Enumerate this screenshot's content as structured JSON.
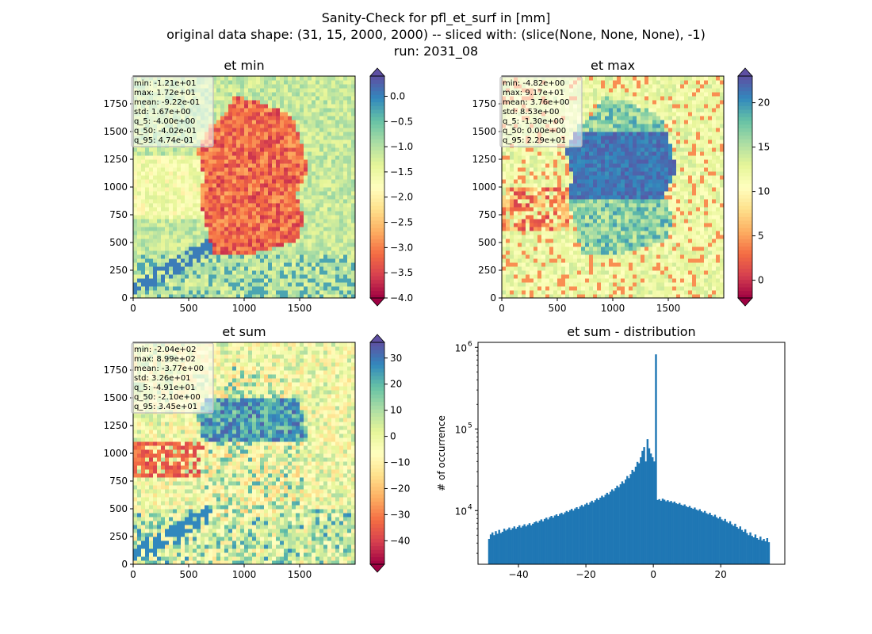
{
  "figure": {
    "title_lines": [
      "Sanity-Check for pfl_et_surf in [mm]",
      "original data shape: (31, 15, 2000, 2000) -- sliced with: (slice(None, None, None), -1)",
      "run: 2031_08"
    ]
  },
  "chart_data": [
    {
      "type": "heatmap",
      "title": "et min",
      "xlim": [
        0,
        2000
      ],
      "ylim": [
        0,
        2000
      ],
      "xticks": [
        0,
        500,
        1000,
        1500
      ],
      "yticks": [
        0,
        250,
        500,
        750,
        1000,
        1250,
        1500,
        1750
      ],
      "colormap": "Spectral",
      "colorbar": {
        "range": [
          -4.0,
          0.4
        ],
        "ticks": [
          "0.0",
          "−0.5",
          "−1.0",
          "−1.5",
          "−2.0",
          "−2.5",
          "−3.0",
          "−3.5",
          "−4.0"
        ],
        "extend": "both"
      },
      "stats": [
        "min: -1.21e+01",
        "max: 1.72e+01",
        "mean: -9.22e-01",
        "std: 1.67e+00",
        "q_5: -4.00e+00",
        "q_50: -4.02e-01",
        "q_95: 4.74e-01"
      ]
    },
    {
      "type": "heatmap",
      "title": "et max",
      "xlim": [
        0,
        2000
      ],
      "ylim": [
        0,
        2000
      ],
      "xticks": [
        0,
        500,
        1000,
        1500
      ],
      "yticks": [
        0,
        250,
        500,
        750,
        1000,
        1250,
        1500,
        1750
      ],
      "colormap": "Spectral",
      "colorbar": {
        "range": [
          -2,
          23
        ],
        "ticks": [
          "20",
          "15",
          "10",
          "5",
          "0"
        ],
        "extend": "both"
      },
      "stats": [
        "min: -4.82e+00",
        "max: 9.17e+01",
        "mean: 3.76e+00",
        "std: 8.53e+00",
        "q_5: -1.30e+00",
        "q_50: 0.00e+00",
        "q_95: 2.29e+01"
      ]
    },
    {
      "type": "heatmap",
      "title": "et sum",
      "xlim": [
        0,
        2000
      ],
      "ylim": [
        0,
        2000
      ],
      "xticks": [
        0,
        500,
        1000,
        1500
      ],
      "yticks": [
        0,
        250,
        500,
        750,
        1000,
        1250,
        1500,
        1750
      ],
      "colormap": "Spectral",
      "colorbar": {
        "range": [
          -49,
          36
        ],
        "ticks": [
          "30",
          "20",
          "10",
          "0",
          "−10",
          "−20",
          "−30",
          "−40"
        ],
        "extend": "both"
      },
      "stats": [
        "min: -2.04e+02",
        "max: 8.99e+02",
        "mean: -3.77e+00",
        "std: 3.26e+01",
        "q_5: -4.91e+01",
        "q_50: -2.10e+00",
        "q_95: 3.45e+01"
      ]
    },
    {
      "type": "bar",
      "title": "et sum - distribution",
      "ylabel": "# of occurrence",
      "xlabel": "",
      "yscale": "log",
      "xlim": [
        -52,
        39
      ],
      "ylim": [
        2200,
        1150000
      ],
      "xticks": [
        -40,
        -20,
        0,
        20
      ],
      "ytick_labels": [
        "10",
        "10",
        "10"
      ],
      "ytick_exponents": [
        "4",
        "5",
        "6"
      ],
      "ytick_values": [
        10000,
        100000,
        1000000
      ],
      "color": "#1f77b4",
      "bin_range": [
        -49,
        34.5
      ],
      "values": [
        4500,
        5100,
        5400,
        5000,
        5600,
        5200,
        5800,
        5300,
        5500,
        6000,
        5700,
        5900,
        6200,
        5800,
        6100,
        6400,
        6000,
        6300,
        6600,
        6200,
        6500,
        6800,
        6400,
        6700,
        7000,
        6600,
        6900,
        7200,
        7400,
        7100,
        7500,
        7800,
        7400,
        7900,
        8200,
        7800,
        8300,
        8600,
        8200,
        8700,
        9000,
        8600,
        9100,
        9400,
        9000,
        9500,
        9900,
        9600,
        10100,
        10500,
        10000,
        10600,
        11000,
        10500,
        11200,
        11700,
        11200,
        11900,
        12400,
        11800,
        12600,
        13200,
        12600,
        13400,
        14100,
        13500,
        14400,
        15200,
        14600,
        15600,
        16500,
        15800,
        17000,
        18200,
        17400,
        18800,
        20200,
        19300,
        21000,
        22800,
        21600,
        24000,
        26500,
        25000,
        28000,
        31500,
        30000,
        34500,
        39500,
        38000,
        45000,
        54000,
        60000,
        40000,
        75000,
        58000,
        50000,
        45000,
        40000,
        820000,
        13500,
        13800,
        13200,
        14000,
        13600,
        13000,
        13400,
        12800,
        13100,
        12500,
        12900,
        12300,
        12000,
        12400,
        11800,
        11500,
        11900,
        11300,
        11000,
        11400,
        10800,
        10500,
        10900,
        10300,
        10000,
        10400,
        9800,
        9500,
        9900,
        9300,
        9000,
        9400,
        8800,
        8500,
        8900,
        8300,
        8000,
        8400,
        7800,
        7500,
        7900,
        7300,
        7000,
        7400,
        6800,
        6500,
        6900,
        6300,
        6000,
        6400,
        5800,
        5500,
        5900,
        5300,
        5000,
        5400,
        4900,
        4700,
        5100,
        4600,
        4400,
        4800,
        4300,
        4500,
        4200,
        4600,
        4100
      ]
    }
  ]
}
